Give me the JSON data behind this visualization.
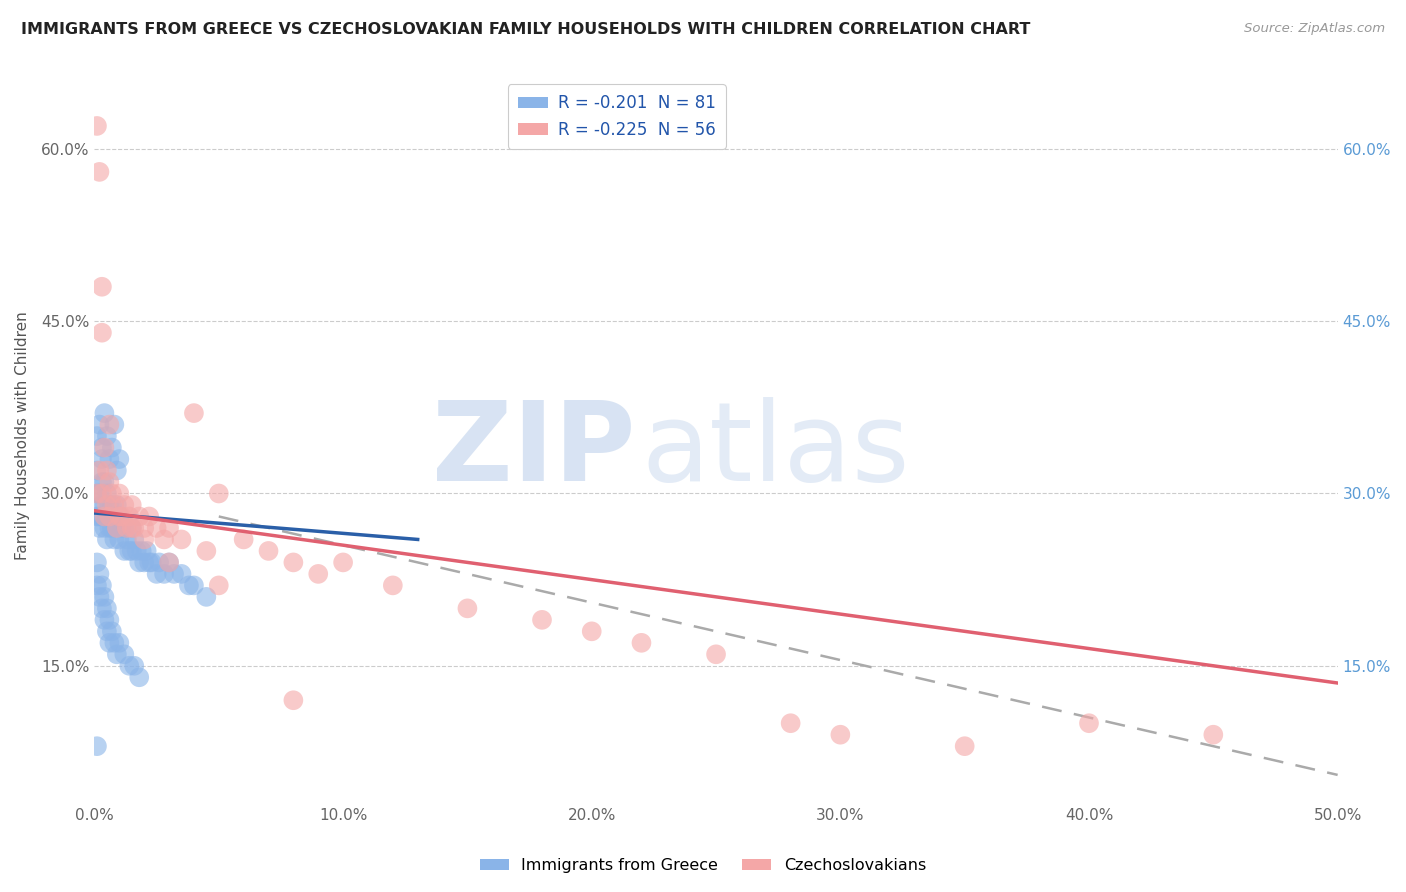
{
  "title": "IMMIGRANTS FROM GREECE VS CZECHOSLOVAKIAN FAMILY HOUSEHOLDS WITH CHILDREN CORRELATION CHART",
  "source": "Source: ZipAtlas.com",
  "ylabel": "Family Households with Children",
  "xlim": [
    0.0,
    0.5
  ],
  "ylim": [
    0.03,
    0.67
  ],
  "xtick_vals": [
    0.0,
    0.1,
    0.2,
    0.3,
    0.4,
    0.5
  ],
  "xtick_labels": [
    "0.0%",
    "10.0%",
    "20.0%",
    "30.0%",
    "40.0%",
    "50.0%"
  ],
  "ytick_vals": [
    0.15,
    0.3,
    0.45,
    0.6
  ],
  "ytick_labels": [
    "15.0%",
    "30.0%",
    "45.0%",
    "60.0%"
  ],
  "legend_r1": "R = -0.201  N = 81",
  "legend_r2": "R = -0.225  N = 56",
  "color_blue": "#8ab4e8",
  "color_pink": "#f4a7a7",
  "color_blue_line": "#2a5fa8",
  "color_pink_line": "#e06070",
  "color_dashed": "#aaaaaa",
  "watermark_zip": "ZIP",
  "watermark_atlas": "atlas",
  "background_color": "#ffffff",
  "greece_x": [
    0.001,
    0.001,
    0.001,
    0.002,
    0.002,
    0.002,
    0.003,
    0.003,
    0.003,
    0.003,
    0.004,
    0.004,
    0.004,
    0.005,
    0.005,
    0.005,
    0.006,
    0.006,
    0.007,
    0.007,
    0.008,
    0.008,
    0.009,
    0.009,
    0.01,
    0.01,
    0.011,
    0.012,
    0.012,
    0.013,
    0.014,
    0.015,
    0.015,
    0.016,
    0.017,
    0.018,
    0.019,
    0.02,
    0.021,
    0.022,
    0.023,
    0.025,
    0.026,
    0.028,
    0.03,
    0.032,
    0.035,
    0.038,
    0.04,
    0.045,
    0.001,
    0.001,
    0.002,
    0.002,
    0.003,
    0.003,
    0.004,
    0.004,
    0.005,
    0.005,
    0.006,
    0.006,
    0.007,
    0.008,
    0.009,
    0.01,
    0.012,
    0.014,
    0.016,
    0.018,
    0.001,
    0.002,
    0.003,
    0.004,
    0.005,
    0.006,
    0.007,
    0.008,
    0.009,
    0.01,
    0.001
  ],
  "greece_y": [
    0.28,
    0.3,
    0.32,
    0.28,
    0.3,
    0.27,
    0.28,
    0.29,
    0.31,
    0.33,
    0.27,
    0.29,
    0.31,
    0.26,
    0.28,
    0.3,
    0.27,
    0.29,
    0.27,
    0.29,
    0.26,
    0.28,
    0.27,
    0.29,
    0.26,
    0.28,
    0.27,
    0.25,
    0.27,
    0.26,
    0.25,
    0.25,
    0.27,
    0.26,
    0.25,
    0.24,
    0.25,
    0.24,
    0.25,
    0.24,
    0.24,
    0.23,
    0.24,
    0.23,
    0.24,
    0.23,
    0.23,
    0.22,
    0.22,
    0.21,
    0.24,
    0.22,
    0.23,
    0.21,
    0.22,
    0.2,
    0.21,
    0.19,
    0.2,
    0.18,
    0.19,
    0.17,
    0.18,
    0.17,
    0.16,
    0.17,
    0.16,
    0.15,
    0.15,
    0.14,
    0.35,
    0.36,
    0.34,
    0.37,
    0.35,
    0.33,
    0.34,
    0.36,
    0.32,
    0.33,
    0.08
  ],
  "czech_x": [
    0.001,
    0.001,
    0.002,
    0.002,
    0.003,
    0.003,
    0.004,
    0.004,
    0.005,
    0.005,
    0.006,
    0.006,
    0.007,
    0.008,
    0.009,
    0.01,
    0.011,
    0.012,
    0.013,
    0.014,
    0.015,
    0.016,
    0.018,
    0.02,
    0.022,
    0.025,
    0.028,
    0.03,
    0.035,
    0.04,
    0.045,
    0.05,
    0.06,
    0.07,
    0.08,
    0.09,
    0.1,
    0.12,
    0.15,
    0.18,
    0.2,
    0.22,
    0.25,
    0.28,
    0.3,
    0.35,
    0.4,
    0.45,
    0.003,
    0.006,
    0.01,
    0.015,
    0.02,
    0.03,
    0.05,
    0.08
  ],
  "czech_y": [
    0.3,
    0.62,
    0.58,
    0.32,
    0.48,
    0.3,
    0.34,
    0.28,
    0.32,
    0.29,
    0.31,
    0.28,
    0.3,
    0.29,
    0.27,
    0.3,
    0.28,
    0.29,
    0.27,
    0.28,
    0.29,
    0.27,
    0.28,
    0.27,
    0.28,
    0.27,
    0.26,
    0.27,
    0.26,
    0.37,
    0.25,
    0.3,
    0.26,
    0.25,
    0.24,
    0.23,
    0.24,
    0.22,
    0.2,
    0.19,
    0.18,
    0.17,
    0.16,
    0.1,
    0.09,
    0.08,
    0.1,
    0.09,
    0.44,
    0.36,
    0.28,
    0.27,
    0.26,
    0.24,
    0.22,
    0.12
  ],
  "blue_line_x": [
    0.0,
    0.13
  ],
  "blue_line_y": [
    0.283,
    0.26
  ],
  "pink_line_x": [
    0.0,
    0.5
  ],
  "pink_line_y": [
    0.285,
    0.135
  ],
  "dash_line_x": [
    0.05,
    0.5
  ],
  "dash_line_y": [
    0.28,
    0.055
  ]
}
